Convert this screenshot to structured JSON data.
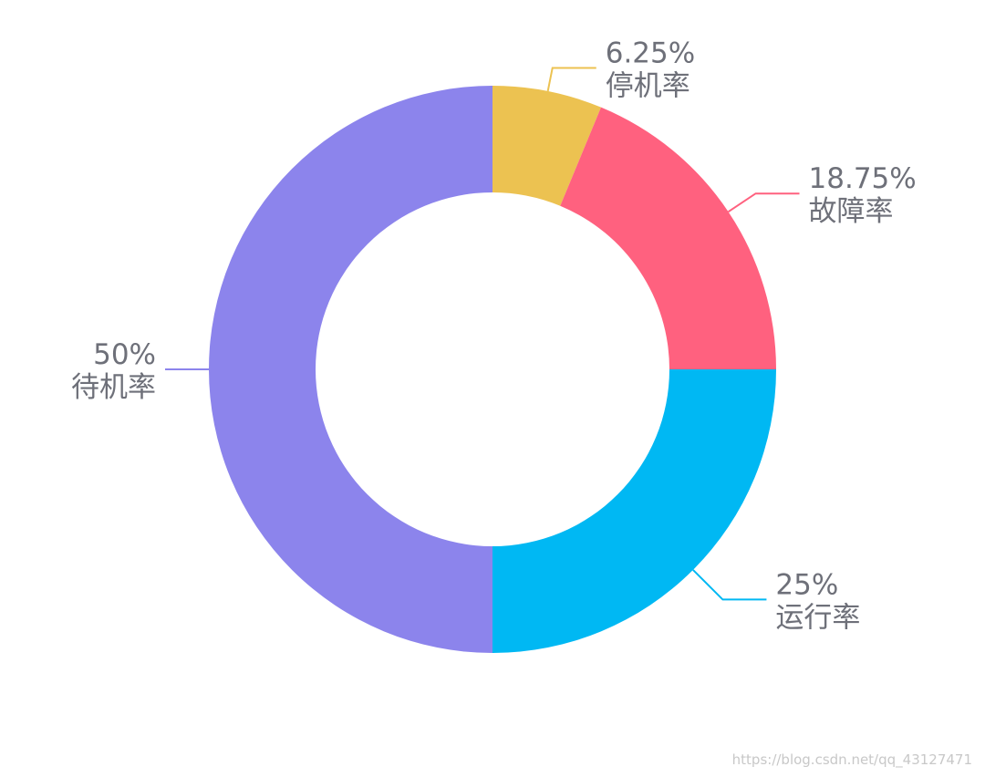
{
  "chart_data": {
    "type": "pie",
    "variant": "donut",
    "title": "",
    "legend": "none",
    "start_angle_deg": 90,
    "direction": "clockwise",
    "slices": [
      {
        "name": "停机率",
        "value": 6.25,
        "label": "6.25%",
        "color": "#ecc251"
      },
      {
        "name": "故障率",
        "value": 18.75,
        "label": "18.75%",
        "color": "#ff617f"
      },
      {
        "name": "运行率",
        "value": 25,
        "label": "25%",
        "color": "#00b8f3"
      },
      {
        "name": "待机率",
        "value": 50,
        "label": "50%",
        "color": "#8c84ec"
      }
    ]
  },
  "watermark": "https://blog.csdn.net/qq_43127471"
}
